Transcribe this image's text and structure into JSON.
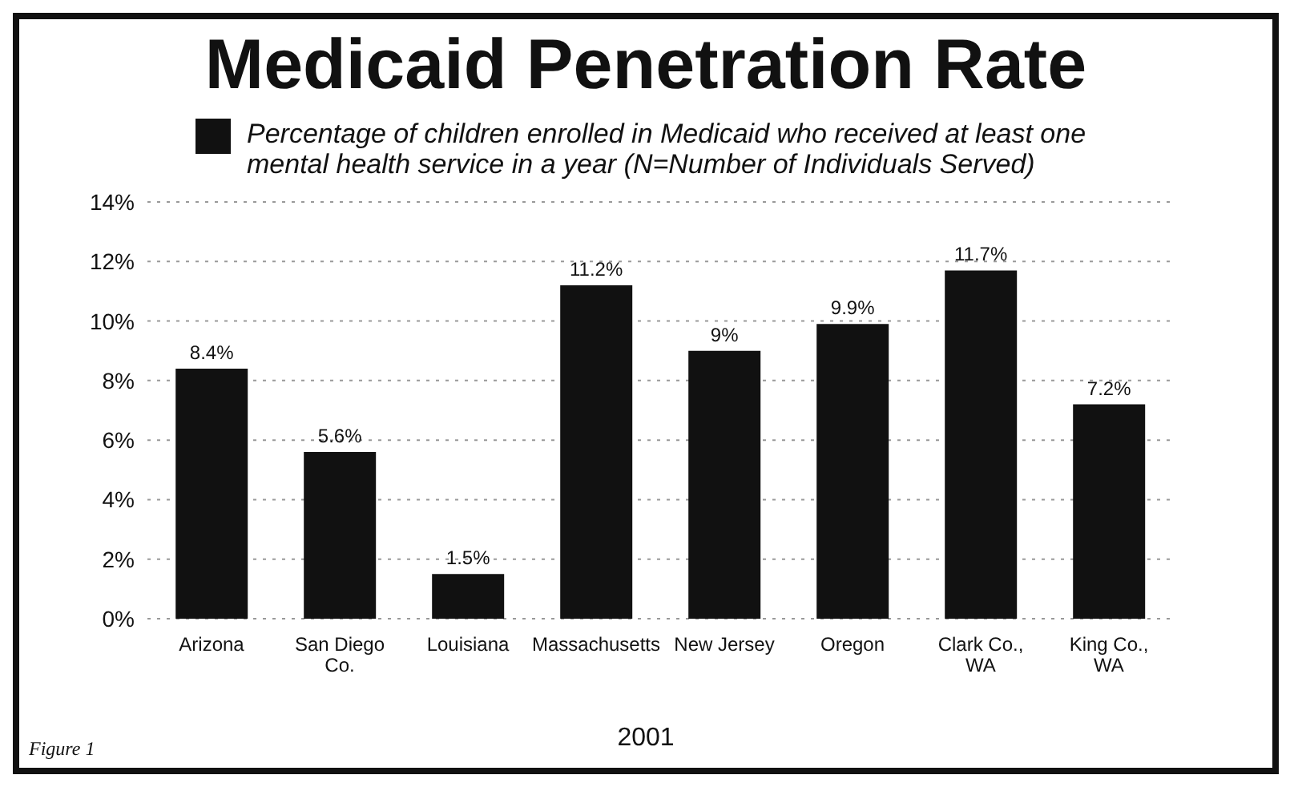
{
  "chart_data": {
    "type": "bar",
    "title": "Medicaid Penetration Rate",
    "categories": [
      "Arizona",
      "San Diego Co.",
      "Louisiana",
      "Massachusetts",
      "New Jersey",
      "Oregon",
      "Clark Co., WA",
      "King Co., WA"
    ],
    "series": [
      {
        "name": "Percentage of children enrolled in Medicaid who received at least one mental health service in a year (N=Number of Individuals Served)",
        "color": "#111111",
        "values": [
          8.4,
          5.6,
          1.5,
          11.2,
          9,
          9.9,
          11.7,
          7.2
        ],
        "value_labels": [
          "8.4%",
          "5.6%",
          "1.5%",
          "11.2%",
          "9%",
          "9.9%",
          "11.7%",
          "7.2%"
        ]
      }
    ],
    "ylim": [
      0,
      14
    ],
    "yticks": [
      {
        "value": 0,
        "label": "0%"
      },
      {
        "value": 2,
        "label": "2%"
      },
      {
        "value": 4,
        "label": "4%"
      },
      {
        "value": 6,
        "label": "6%"
      },
      {
        "value": 8,
        "label": "8%"
      },
      {
        "value": 10,
        "label": "10%"
      },
      {
        "value": 12,
        "label": "12%"
      },
      {
        "value": 14,
        "label": "14%"
      }
    ],
    "grid": "y",
    "legend": "top",
    "annotations": [
      "2001",
      "Figure 1"
    ]
  }
}
